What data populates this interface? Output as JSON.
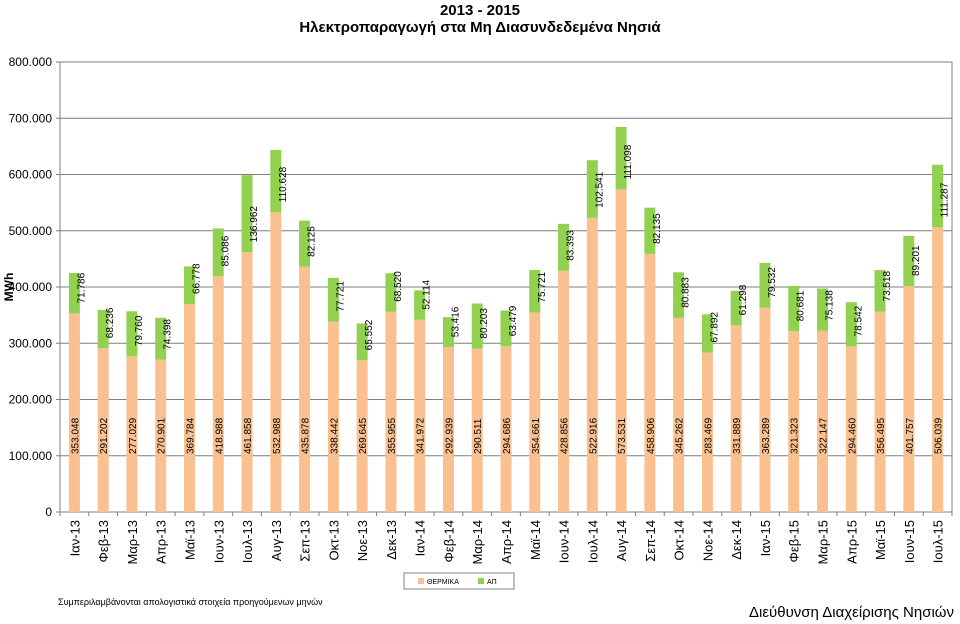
{
  "chart_data": {
    "type": "bar",
    "stacked": true,
    "title": "2013 - 2015",
    "subtitle": "Ηλεκτροπαραγωγή στα Μη Διασυνδεδεμένα Νησιά",
    "ylabel": "MWh",
    "ylim": [
      0,
      800000
    ],
    "yticks": [
      0,
      100000,
      200000,
      300000,
      400000,
      500000,
      600000,
      700000,
      800000
    ],
    "ytick_labels": [
      "0",
      "100.000",
      "200.000",
      "300.000",
      "400.000",
      "500.000",
      "600.000",
      "700.000",
      "800.000"
    ],
    "grid": true,
    "legend_position": "bottom",
    "categories": [
      "Ιαν-13",
      "Φεβ-13",
      "Μαρ-13",
      "Απρ-13",
      "Μαϊ-13",
      "Ιουν-13",
      "Ιουλ-13",
      "Αυγ-13",
      "Σεπ-13",
      "Οκτ-13",
      "Νοε-13",
      "Δεκ-13",
      "Ιαν-14",
      "Φεβ-14",
      "Μαρ-14",
      "Απρ-14",
      "Μαϊ-14",
      "Ιουν-14",
      "Ιουλ-14",
      "Αυγ-14",
      "Σεπ-14",
      "Οκτ-14",
      "Νοε-14",
      "Δεκ-14",
      "Ιαν-15",
      "Φεβ-15",
      "Μαρ-15",
      "Απρ-15",
      "Μαϊ-15",
      "Ιουν-15",
      "Ιουλ-15"
    ],
    "series": [
      {
        "name": "ΘΕΡΜΙΚΑ",
        "color": "#FAC090",
        "values": [
          353048,
          291202,
          277029,
          270901,
          369784,
          418988,
          461858,
          532988,
          435878,
          338442,
          269645,
          355955,
          341972,
          292939,
          290511,
          294686,
          354661,
          428856,
          522916,
          573531,
          458906,
          345262,
          283469,
          331889,
          363289,
          321323,
          322147,
          294460,
          356495,
          401757,
          506039
        ],
        "labels": [
          "353.048",
          "291.202",
          "277.029",
          "270.901",
          "369.784",
          "418.988",
          "461.858",
          "532.988",
          "435.878",
          "338.442",
          "269.645",
          "355.955",
          "341.972",
          "292.939",
          "290.511",
          "294.686",
          "354.661",
          "428.856",
          "522.916",
          "573.531",
          "458.906",
          "345.262",
          "283.469",
          "331.889",
          "363.289",
          "321.323",
          "322.147",
          "294.460",
          "356.495",
          "401.757",
          "506.039"
        ]
      },
      {
        "name": "ΑΠ",
        "color": "#92D050",
        "values": [
          71786,
          68236,
          79760,
          74398,
          66778,
          85086,
          136962,
          110628,
          82125,
          77721,
          65552,
          68520,
          52114,
          53416,
          80203,
          63479,
          75721,
          83393,
          102541,
          111098,
          82135,
          80883,
          67892,
          61298,
          79532,
          80681,
          75138,
          78542,
          73518,
          89201,
          111287
        ],
        "labels": [
          "71.786",
          "68.236",
          "79.760",
          "74.398",
          "66.778",
          "85.086",
          "136.962",
          "110.628",
          "82.125",
          "77.721",
          "65.552",
          "68.520",
          "52.114",
          "53.416",
          "80.203",
          "63.479",
          "75.721",
          "83.393",
          "102.541",
          "111.098",
          "82.135",
          "80.883",
          "67.892",
          "61.298",
          "79.532",
          "80.681",
          "75.138",
          "78.542",
          "73.518",
          "89.201",
          "111.287"
        ]
      }
    ]
  },
  "footer": {
    "note": "Συμπεριλαμβάνονται απολογιστικά στοιχεία προηγούμενων μηνών",
    "department": "Διεύθυνση Διαχείρισης Νησιών"
  }
}
